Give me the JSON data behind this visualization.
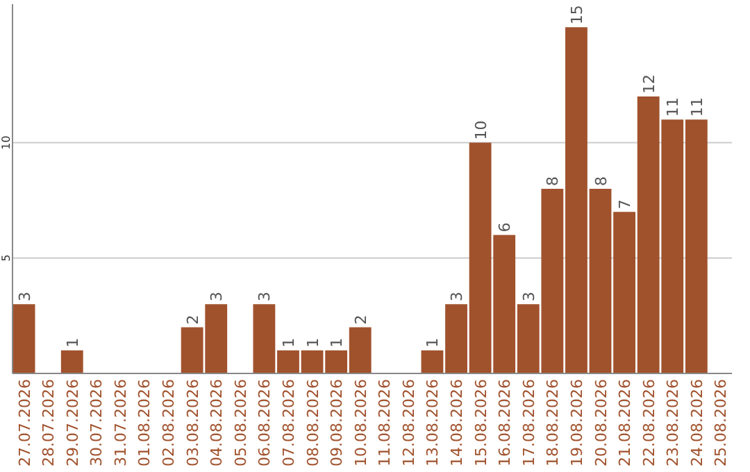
{
  "chart_data": {
    "type": "bar",
    "categories": [
      "27.07.2026",
      "28.07.2026",
      "29.07.2026",
      "30.07.2026",
      "31.07.2026",
      "01.08.2026",
      "02.08.2026",
      "03.08.2026",
      "04.08.2026",
      "05.08.2026",
      "06.08.2026",
      "07.08.2026",
      "08.08.2026",
      "09.08.2026",
      "10.08.2026",
      "11.08.2026",
      "12.08.2026",
      "13.08.2026",
      "14.08.2026",
      "15.08.2026",
      "16.08.2026",
      "17.08.2026",
      "18.08.2026",
      "19.08.2026",
      "20.08.2026",
      "21.08.2026",
      "22.08.2026",
      "23.08.2026",
      "24.08.2026",
      "25.08.2026"
    ],
    "values": [
      3,
      null,
      1,
      null,
      null,
      null,
      null,
      2,
      3,
      null,
      3,
      1,
      1,
      1,
      2,
      null,
      null,
      1,
      3,
      10,
      6,
      3,
      8,
      15,
      8,
      7,
      12,
      11,
      11,
      null
    ],
    "color": "#a0522d",
    "ylim": [
      0,
      16
    ],
    "yticks": [
      5,
      10
    ],
    "grid": "y",
    "data_labels": true
  }
}
